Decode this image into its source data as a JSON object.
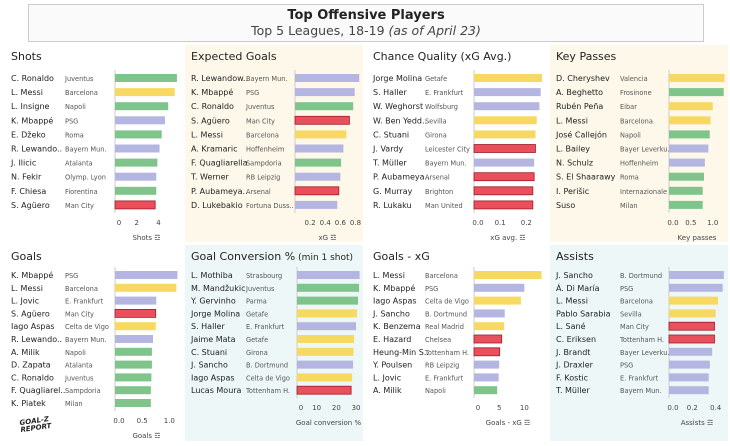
{
  "header": {
    "title": "Top Offensive Players",
    "subtitle": "Top 5 Leagues, 18-19",
    "subtitle_note": "(as of April 23)"
  },
  "logo": "GOAL-Z REPORT",
  "colors": {
    "Serie A": "#7fc48a",
    "La Liga": "#f7d862",
    "Bundesliga": "#b5b5e2",
    "Ligue 1": "#b5b5e2",
    "Premier League": "#ea4f5c",
    "panel_cream": "#fdf8ea",
    "panel_teal": "#eef7f7"
  },
  "chart_data": [
    {
      "type": "bar",
      "title": "Shots",
      "xlabel": "Shots",
      "ticks": [
        "0",
        "2",
        "4"
      ],
      "tickvals": [
        0,
        2,
        4
      ],
      "xlim": [
        0,
        5.8
      ],
      "bg": "#ffffff",
      "sort_icon": true,
      "rows": [
        [
          "C. Ronaldo",
          "Juventus",
          5.7,
          "Serie A"
        ],
        [
          "L. Messi",
          "Barcelona",
          5.5,
          "La Liga"
        ],
        [
          "L. Insigne",
          "Napoli",
          4.9,
          "Serie A"
        ],
        [
          "K. Mbappé",
          "PSG",
          4.6,
          "Ligue 1"
        ],
        [
          "E. Džeko",
          "Roma",
          4.3,
          "Serie A"
        ],
        [
          "R. Lewando..",
          "Bayern Mun.",
          4.1,
          "Bundesliga"
        ],
        [
          "J. Ilicic",
          "Atalanta",
          3.9,
          "Serie A"
        ],
        [
          "N. Fekir",
          "Olymp. Lyon",
          3.8,
          "Ligue 1"
        ],
        [
          "F. Chiesa",
          "Fiorentina",
          3.8,
          "Serie A"
        ],
        [
          "S. Agüero",
          "Man City",
          3.7,
          "Premier League"
        ]
      ]
    },
    {
      "type": "bar",
      "title": "Expected Goals",
      "xlabel": "xG",
      "ticks": [
        "0.2",
        "0.4",
        "0.6",
        "0.8"
      ],
      "tickvals": [
        0.2,
        0.4,
        0.6,
        0.8
      ],
      "xlim": [
        0,
        0.86
      ],
      "bg": "#fdf8ea",
      "sort_icon": true,
      "rows": [
        [
          "R. Lewandow..",
          "Bayern Mun.",
          0.85,
          "Bundesliga"
        ],
        [
          "K. Mbappé",
          "PSG",
          0.79,
          "Ligue 1"
        ],
        [
          "C. Ronaldo",
          "Juventus",
          0.77,
          "Serie A"
        ],
        [
          "S. Agüero",
          "Man City",
          0.72,
          "Premier League"
        ],
        [
          "L. Messi",
          "Barcelona",
          0.68,
          "La Liga"
        ],
        [
          "A. Kramaric",
          "Hoffenheim",
          0.64,
          "Bundesliga"
        ],
        [
          "F. Quagliarella",
          "Sampdoria",
          0.61,
          "Serie A"
        ],
        [
          "T. Werner",
          "RB Leipzig",
          0.6,
          "Bundesliga"
        ],
        [
          "P. Aubameya..",
          "Arsenal",
          0.58,
          "Premier League"
        ],
        [
          "D. Lukebakio",
          "Fortuna Duss..",
          0.56,
          "Bundesliga"
        ]
      ]
    },
    {
      "type": "bar",
      "title": "Chance Quality (xG Avg.)",
      "xlabel": "xG avg.",
      "ticks": [
        "0.0",
        "0.1",
        "0.2"
      ],
      "tickvals": [
        0,
        0.1,
        0.2
      ],
      "xlim": [
        0,
        0.26
      ],
      "bg": "#ffffff",
      "sort_icon": true,
      "rows": [
        [
          "Jorge Molina",
          "Getafe",
          0.26,
          "La Liga"
        ],
        [
          "S. Haller",
          "E. Frankfurt",
          0.255,
          "Bundesliga"
        ],
        [
          "W. Weghorst",
          "Wolfsburg",
          0.25,
          "Bundesliga"
        ],
        [
          "W. Ben Yedd..",
          "Sevilla",
          0.24,
          "La Liga"
        ],
        [
          "C. Stuani",
          "Girona",
          0.235,
          "La Liga"
        ],
        [
          "J. Vardy",
          "Leicester City",
          0.235,
          "Premier League"
        ],
        [
          "T. Müller",
          "Bayern Mun.",
          0.23,
          "Bundesliga"
        ],
        [
          "P. Aubameya..",
          "Arsenal",
          0.23,
          "Premier League"
        ],
        [
          "G. Murray",
          "Brighton",
          0.225,
          "Premier League"
        ],
        [
          "R. Lukaku",
          "Man United",
          0.225,
          "Premier League"
        ]
      ]
    },
    {
      "type": "bar",
      "title": "Key Passes",
      "xlabel": "Key passes",
      "ticks": [
        "0.0",
        "0.5",
        "1.0"
      ],
      "tickvals": [
        0,
        0.5,
        1
      ],
      "xlim": [
        0,
        1.28
      ],
      "bg": "#fdf8ea",
      "sort_icon": false,
      "rows": [
        [
          "D. Cheryshev",
          "Valencia",
          1.27,
          "La Liga"
        ],
        [
          "A. Beghetto",
          "Frosinone",
          1.25,
          "Serie A"
        ],
        [
          "Rubén Peña",
          "Eibar",
          1.0,
          "La Liga"
        ],
        [
          "L. Messi",
          "Barcelona",
          0.95,
          "La Liga"
        ],
        [
          "José Callejón",
          "Napoli",
          0.93,
          "Serie A"
        ],
        [
          "L. Bailey",
          "Bayer Leverku..",
          0.9,
          "Bundesliga"
        ],
        [
          "N. Schulz",
          "Hoffenheim",
          0.82,
          "Bundesliga"
        ],
        [
          "S. El Shaarawy",
          "Roma",
          0.8,
          "Serie A"
        ],
        [
          "I. Perišic",
          "Internazionale",
          0.77,
          "Serie A"
        ],
        [
          "Suso",
          "Milan",
          0.77,
          "Serie A"
        ]
      ]
    },
    {
      "type": "bar",
      "title": "Goals",
      "xlabel": "Goals",
      "ticks": [
        "0.0",
        "0.5",
        "1.0"
      ],
      "tickvals": [
        0,
        0.5,
        1
      ],
      "xlim": [
        0,
        1.16
      ],
      "bg": "#ffffff",
      "sort_icon": true,
      "rows": [
        [
          "K. Mbappé",
          "PSG",
          1.15,
          "Ligue 1"
        ],
        [
          "L. Messi",
          "Barcelona",
          1.13,
          "La Liga"
        ],
        [
          "L. Jovic",
          "E. Frankfurt",
          0.76,
          "Bundesliga"
        ],
        [
          "S. Agüero",
          "Man City",
          0.75,
          "Premier League"
        ],
        [
          "Iago Aspas",
          "Celta de Vigo",
          0.75,
          "La Liga"
        ],
        [
          "R. Lewando..",
          "Bayern Mun.",
          0.7,
          "Bundesliga"
        ],
        [
          "A. Milik",
          "Napoli",
          0.68,
          "Serie A"
        ],
        [
          "D. Zapata",
          "Atalanta",
          0.68,
          "Serie A"
        ],
        [
          "C. Ronaldo",
          "Juventus",
          0.67,
          "Serie A"
        ],
        [
          "F. Quagliarel..",
          "Sampdoria",
          0.66,
          "Serie A"
        ],
        [
          "K. Piatek",
          "Milan",
          0.66,
          "Serie A"
        ]
      ]
    },
    {
      "type": "bar",
      "title": "Goal Conversion %",
      "title_note": "(min 1 shot)",
      "xlabel": "Goal conversion %",
      "ticks": [
        "0",
        "10",
        "20",
        "30"
      ],
      "tickvals": [
        0,
        10,
        20,
        30
      ],
      "xlim": [
        0,
        32
      ],
      "bg": "#eef7f7",
      "sort_icon": false,
      "rows": [
        [
          "L. Mothiba",
          "Strasbourg",
          31.8,
          "Ligue 1"
        ],
        [
          "M. Mandžukic",
          "Juventus",
          31.5,
          "Serie A"
        ],
        [
          "Y. Gervinho",
          "Parma",
          31,
          "Serie A"
        ],
        [
          "Jorge Molina",
          "Getafe",
          30.5,
          "La Liga"
        ],
        [
          "S. Haller",
          "E. Frankfurt",
          30,
          "Bundesliga"
        ],
        [
          "Jaime Mata",
          "Getafe",
          29,
          "La Liga"
        ],
        [
          "C. Stuani",
          "Girona",
          28.7,
          "La Liga"
        ],
        [
          "J. Sancho",
          "B. Dortmund",
          28.5,
          "Bundesliga"
        ],
        [
          "Iago Aspas",
          "Celta de Vigo",
          28,
          "La Liga"
        ],
        [
          "Lucas Moura",
          "Tottenham H.",
          27.5,
          "Premier League"
        ]
      ]
    },
    {
      "type": "bar",
      "title": "Goals - xG",
      "xlabel": "Goals - xG",
      "ticks": [
        "0",
        "5",
        "10"
      ],
      "tickvals": [
        0,
        5,
        10
      ],
      "xlim": [
        0,
        13.5
      ],
      "bg": "#ffffff",
      "sort_icon": true,
      "rows": [
        [
          "L. Messi",
          "Barcelona",
          13.4,
          "La Liga"
        ],
        [
          "K. Mbappé",
          "PSG",
          10,
          "Ligue 1"
        ],
        [
          "Iago Aspas",
          "Celta de Vigo",
          9.3,
          "La Liga"
        ],
        [
          "J. Sancho",
          "B. Dortmund",
          6.1,
          "Bundesliga"
        ],
        [
          "K. Benzema",
          "Real Madrid",
          6,
          "La Liga"
        ],
        [
          "E. Hazard",
          "Chelsea",
          5.5,
          "Premier League"
        ],
        [
          "Heung-Min S..",
          "Tottenham H.",
          5.1,
          "Premier League"
        ],
        [
          "Y. Poulsen",
          "RB Leipzig",
          5,
          "Bundesliga"
        ],
        [
          "L. Jovic",
          "E. Frankfurt",
          4.9,
          "Bundesliga"
        ],
        [
          "A. Milik",
          "Napoli",
          4.6,
          "Serie A"
        ]
      ]
    },
    {
      "type": "bar",
      "title": "Assists",
      "xlabel": "Assists",
      "ticks": [
        "0.0",
        "0.2",
        "0.4"
      ],
      "tickvals": [
        0,
        0.2,
        0.4
      ],
      "xlim": [
        0,
        0.48
      ],
      "bg": "#eef7f7",
      "sort_icon": true,
      "rows": [
        [
          "J. Sancho",
          "B. Dortmund",
          0.47,
          "Bundesliga"
        ],
        [
          "Á. Di María",
          "PSG",
          0.46,
          "Ligue 1"
        ],
        [
          "L. Messi",
          "Barcelona",
          0.42,
          "La Liga"
        ],
        [
          "Pablo Sarabia",
          "Sevilla",
          0.4,
          "La Liga"
        ],
        [
          "L. Sané",
          "Man City",
          0.39,
          "Premier League"
        ],
        [
          "C. Eriksen",
          "Tottenham H.",
          0.39,
          "Premier League"
        ],
        [
          "J. Brandt",
          "Bayer Leverku..",
          0.37,
          "Bundesliga"
        ],
        [
          "J. Draxler",
          "PSG",
          0.35,
          "Ligue 1"
        ],
        [
          "F. Kostic",
          "E. Frankfurt",
          0.34,
          "Bundesliga"
        ],
        [
          "T. Müller",
          "Bayern Mun.",
          0.34,
          "Bundesliga"
        ]
      ]
    }
  ]
}
